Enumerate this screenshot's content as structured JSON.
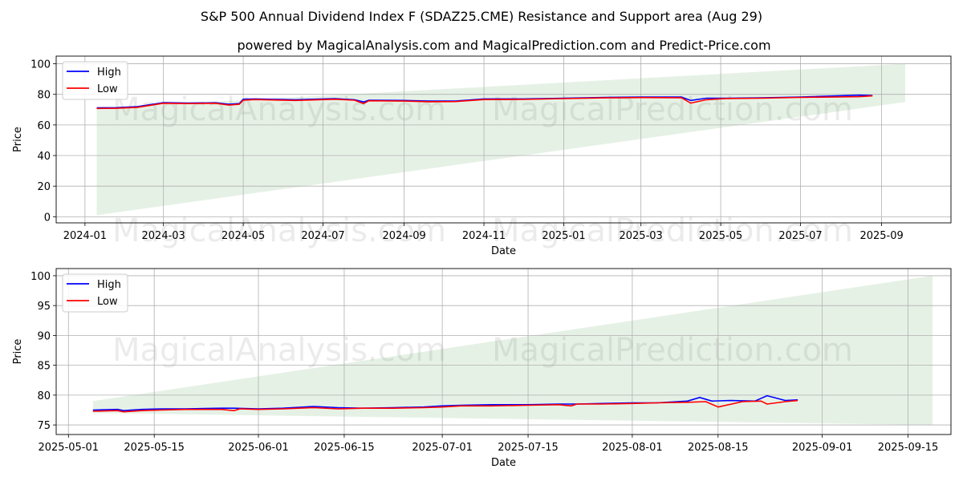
{
  "title": "S&P 500 Annual Dividend Index F (SDAZ25.CME) Resistance and Support area (Aug 29)",
  "subtitle": "powered by MagicalAnalysis.com and MagicalPrediction.com and Predict-Price.com",
  "watermarks": [
    "MagicalAnalysis.com",
    "MagicalPrediction.com"
  ],
  "colors": {
    "high": "#0000ff",
    "low": "#ff0000",
    "band": "#2e8b2e"
  },
  "chart_data": [
    {
      "type": "line",
      "xlabel": "Date",
      "ylabel": "Price",
      "x_ticks": [
        "2024-01",
        "2024-03",
        "2024-05",
        "2024-07",
        "2024-09",
        "2024-11",
        "2025-01",
        "2025-03",
        "2025-05",
        "2025-07",
        "2025-09"
      ],
      "y_ticks": [
        0,
        20,
        40,
        60,
        80,
        100
      ],
      "xlim": [
        "2023-12-10",
        "2025-10-24"
      ],
      "ylim": [
        -4,
        105
      ],
      "grid": true,
      "legend": "top-left",
      "band": {
        "start": "2024-01-10",
        "end": "2025-09-19",
        "lower": [
          1,
          75
        ],
        "upper": [
          71,
          100
        ]
      },
      "series": [
        {
          "name": "High",
          "points": [
            [
              "2024-01-10",
              71.2
            ],
            [
              "2024-01-25",
              71.3
            ],
            [
              "2024-02-10",
              72
            ],
            [
              "2024-03-01",
              74.6
            ],
            [
              "2024-03-20",
              74.3
            ],
            [
              "2024-04-10",
              74.5
            ],
            [
              "2024-04-20",
              73.5
            ],
            [
              "2024-04-28",
              74
            ],
            [
              "2024-05-01",
              76.8
            ],
            [
              "2024-05-10",
              77
            ],
            [
              "2024-06-10",
              76.5
            ],
            [
              "2024-07-10",
              77.2
            ],
            [
              "2024-07-25",
              76.5
            ],
            [
              "2024-08-01",
              75
            ],
            [
              "2024-08-05",
              76.2
            ],
            [
              "2024-09-01",
              76
            ],
            [
              "2024-09-20",
              75.6
            ],
            [
              "2024-10-10",
              75.6
            ],
            [
              "2024-11-01",
              77
            ],
            [
              "2024-12-01",
              77
            ],
            [
              "2025-01-01",
              77.5
            ],
            [
              "2025-02-01",
              78
            ],
            [
              "2025-03-01",
              78.2
            ],
            [
              "2025-04-01",
              78.2
            ],
            [
              "2025-04-08",
              76
            ],
            [
              "2025-04-20",
              77.5
            ],
            [
              "2025-05-05",
              77.5
            ],
            [
              "2025-06-01",
              77.7
            ],
            [
              "2025-07-01",
              78.3
            ],
            [
              "2025-08-15",
              79.5
            ],
            [
              "2025-08-25",
              79.2
            ]
          ]
        },
        {
          "name": "Low",
          "points": [
            [
              "2024-01-10",
              70.8
            ],
            [
              "2024-01-25",
              70.9
            ],
            [
              "2024-02-10",
              71.5
            ],
            [
              "2024-03-01",
              74.2
            ],
            [
              "2024-03-20",
              74
            ],
            [
              "2024-04-10",
              74.2
            ],
            [
              "2024-04-20",
              73
            ],
            [
              "2024-04-28",
              73.5
            ],
            [
              "2024-05-01",
              76.2
            ],
            [
              "2024-05-10",
              76.6
            ],
            [
              "2024-06-10",
              76
            ],
            [
              "2024-07-10",
              76.8
            ],
            [
              "2024-07-25",
              76.2
            ],
            [
              "2024-08-01",
              74
            ],
            [
              "2024-08-05",
              75.8
            ],
            [
              "2024-09-01",
              75.6
            ],
            [
              "2024-09-20",
              75.2
            ],
            [
              "2024-10-10",
              75.3
            ],
            [
              "2024-11-01",
              76.6
            ],
            [
              "2024-12-01",
              76.7
            ],
            [
              "2025-01-01",
              77.2
            ],
            [
              "2025-02-01",
              77.7
            ],
            [
              "2025-03-01",
              77.9
            ],
            [
              "2025-04-01",
              77.8
            ],
            [
              "2025-04-08",
              74.3
            ],
            [
              "2025-04-20",
              76.5
            ],
            [
              "2025-05-05",
              77.3
            ],
            [
              "2025-06-01",
              77.5
            ],
            [
              "2025-07-01",
              78
            ],
            [
              "2025-08-15",
              78.5
            ],
            [
              "2025-08-25",
              79
            ]
          ]
        }
      ]
    },
    {
      "type": "line",
      "xlabel": "Date",
      "ylabel": "Price",
      "x_ticks": [
        "2025-05-01",
        "2025-05-15",
        "2025-06-01",
        "2025-06-15",
        "2025-07-01",
        "2025-07-15",
        "2025-08-01",
        "2025-08-15",
        "2025-09-01",
        "2025-09-15"
      ],
      "y_ticks": [
        75,
        80,
        85,
        90,
        95,
        100
      ],
      "xlim": [
        "2025-04-29",
        "2025-09-22"
      ],
      "ylim": [
        73.4,
        101.2
      ],
      "grid": true,
      "legend": "top-left",
      "band": {
        "start": "2025-05-05",
        "end": "2025-09-19",
        "lower": [
          77,
          75
        ],
        "upper": [
          79,
          100
        ]
      },
      "series": [
        {
          "name": "High",
          "points": [
            [
              "2025-05-05",
              77.5
            ],
            [
              "2025-05-09",
              77.6
            ],
            [
              "2025-05-10",
              77.4
            ],
            [
              "2025-05-13",
              77.6
            ],
            [
              "2025-05-16",
              77.7
            ],
            [
              "2025-05-20",
              77.7
            ],
            [
              "2025-05-26",
              77.8
            ],
            [
              "2025-05-28",
              77.8
            ],
            [
              "2025-06-01",
              77.7
            ],
            [
              "2025-06-05",
              77.8
            ],
            [
              "2025-06-10",
              78.1
            ],
            [
              "2025-06-14",
              77.9
            ],
            [
              "2025-06-18",
              77.8
            ],
            [
              "2025-06-23",
              77.9
            ],
            [
              "2025-06-28",
              78.0
            ],
            [
              "2025-07-01",
              78.2
            ],
            [
              "2025-07-04",
              78.3
            ],
            [
              "2025-07-09",
              78.4
            ],
            [
              "2025-07-15",
              78.4
            ],
            [
              "2025-07-20",
              78.5
            ],
            [
              "2025-07-23",
              78.5
            ],
            [
              "2025-07-27",
              78.6
            ],
            [
              "2025-08-01",
              78.7
            ],
            [
              "2025-08-05",
              78.7
            ],
            [
              "2025-08-10",
              79.0
            ],
            [
              "2025-08-12",
              79.6
            ],
            [
              "2025-08-14",
              79.0
            ],
            [
              "2025-08-17",
              79.1
            ],
            [
              "2025-08-21",
              79.0
            ],
            [
              "2025-08-23",
              79.9
            ],
            [
              "2025-08-26",
              79.1
            ],
            [
              "2025-08-28",
              79.2
            ]
          ]
        },
        {
          "name": "Low",
          "points": [
            [
              "2025-05-05",
              77.3
            ],
            [
              "2025-05-09",
              77.4
            ],
            [
              "2025-05-10",
              77.2
            ],
            [
              "2025-05-13",
              77.4
            ],
            [
              "2025-05-16",
              77.5
            ],
            [
              "2025-05-20",
              77.6
            ],
            [
              "2025-05-26",
              77.6
            ],
            [
              "2025-05-28",
              77.4
            ],
            [
              "2025-05-29",
              77.7
            ],
            [
              "2025-06-01",
              77.6
            ],
            [
              "2025-06-05",
              77.7
            ],
            [
              "2025-06-10",
              77.9
            ],
            [
              "2025-06-14",
              77.7
            ],
            [
              "2025-06-18",
              77.8
            ],
            [
              "2025-06-23",
              77.8
            ],
            [
              "2025-06-28",
              77.9
            ],
            [
              "2025-07-01",
              78.0
            ],
            [
              "2025-07-04",
              78.2
            ],
            [
              "2025-07-09",
              78.2
            ],
            [
              "2025-07-15",
              78.3
            ],
            [
              "2025-07-20",
              78.4
            ],
            [
              "2025-07-22",
              78.2
            ],
            [
              "2025-07-23",
              78.5
            ],
            [
              "2025-07-27",
              78.5
            ],
            [
              "2025-08-01",
              78.6
            ],
            [
              "2025-08-05",
              78.7
            ],
            [
              "2025-08-10",
              78.8
            ],
            [
              "2025-08-13",
              78.9
            ],
            [
              "2025-08-15",
              78.0
            ],
            [
              "2025-08-19",
              78.9
            ],
            [
              "2025-08-22",
              79.0
            ],
            [
              "2025-08-23",
              78.5
            ],
            [
              "2025-08-26",
              78.9
            ],
            [
              "2025-08-28",
              79.1
            ]
          ]
        }
      ]
    }
  ]
}
